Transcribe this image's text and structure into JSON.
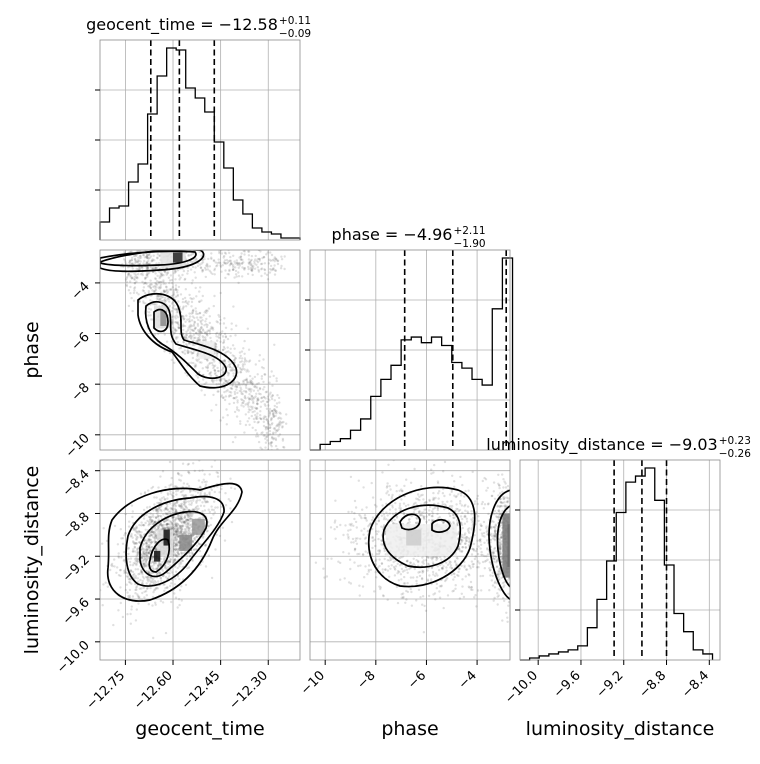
{
  "chart_data": {
    "type": "corner",
    "parameters": [
      "geocent_time",
      "phase",
      "luminosity_distance"
    ],
    "axis_labels": {
      "geocent_time": "geocent_time",
      "phase": "phase",
      "luminosity_distance": "luminosity_distance"
    },
    "grid": true,
    "titles": [
      {
        "param": "geocent_time",
        "text": "geocent_time = −12.58",
        "plus": "+0.11",
        "minus": "−0.09"
      },
      {
        "param": "phase",
        "text": "phase = −4.96",
        "plus": "+2.11",
        "minus": "−1.90"
      },
      {
        "param": "luminosity_distance",
        "text": "luminosity_distance = −9.03",
        "plus": "+0.23",
        "minus": "−0.26"
      }
    ],
    "ranges": {
      "geocent_time": [
        -12.83,
        -12.2
      ],
      "phase": [
        -10.6,
        -2.7
      ],
      "luminosity_distance": [
        -10.17,
        -8.3
      ]
    },
    "ticks": {
      "geocent_time": {
        "values": [
          -12.75,
          -12.6,
          -12.45,
          -12.3
        ],
        "labels": [
          "−12.75",
          "−12.60",
          "−12.45",
          "−12.30"
        ]
      },
      "phase": {
        "values": [
          -10,
          -8,
          -6,
          -4
        ],
        "labels": [
          "−10",
          "−8",
          "−6",
          "−4"
        ]
      },
      "luminosity_distance": {
        "values": [
          -10.0,
          -9.6,
          -9.2,
          -8.8,
          -8.4
        ],
        "labels": [
          "−10.0",
          "−9.6",
          "−9.2",
          "−8.8",
          "−8.4"
        ]
      }
    },
    "quantiles": {
      "geocent_time": [
        -12.67,
        -12.58,
        -12.47
      ],
      "phase": [
        -6.86,
        -4.96,
        -2.85
      ],
      "luminosity_distance": [
        -9.29,
        -9.03,
        -8.8
      ]
    },
    "histograms": {
      "geocent_time": {
        "edges": [
          -12.83,
          -12.8,
          -12.77,
          -12.74,
          -12.71,
          -12.68,
          -12.65,
          -12.62,
          -12.59,
          -12.56,
          -12.53,
          -12.5,
          -12.47,
          -12.44,
          -12.41,
          -12.38,
          -12.35,
          -12.32,
          -12.29,
          -12.26,
          -12.23,
          -12.2
        ],
        "counts": [
          0.09,
          0.16,
          0.17,
          0.29,
          0.38,
          0.63,
          0.82,
          0.96,
          0.95,
          0.76,
          0.71,
          0.64,
          0.49,
          0.36,
          0.2,
          0.13,
          0.06,
          0.04,
          0.03,
          0.01,
          0.01
        ]
      },
      "phase": {
        "edges": [
          -10.6,
          -10.2,
          -9.8,
          -9.4,
          -9.0,
          -8.6,
          -8.2,
          -7.8,
          -7.4,
          -7.0,
          -6.6,
          -6.2,
          -5.8,
          -5.4,
          -5.0,
          -4.6,
          -4.2,
          -3.8,
          -3.4,
          -3.0,
          -2.6
        ],
        "counts": [
          0.0,
          0.02,
          0.03,
          0.04,
          0.07,
          0.11,
          0.19,
          0.25,
          0.3,
          0.39,
          0.4,
          0.38,
          0.4,
          0.37,
          0.31,
          0.29,
          0.25,
          0.23,
          0.5,
          0.68
        ]
      },
      "luminosity_distance": {
        "edges": [
          -10.17,
          -10.08,
          -9.99,
          -9.9,
          -9.81,
          -9.72,
          -9.63,
          -9.54,
          -9.45,
          -9.36,
          -9.27,
          -9.18,
          -9.09,
          -9.0,
          -8.91,
          -8.82,
          -8.73,
          -8.64,
          -8.55,
          -8.46,
          -8.37
        ],
        "counts": [
          0.0,
          0.01,
          0.02,
          0.03,
          0.04,
          0.05,
          0.07,
          0.16,
          0.3,
          0.49,
          0.73,
          0.88,
          0.91,
          0.95,
          0.79,
          0.47,
          0.23,
          0.14,
          0.05,
          0.03
        ]
      }
    },
    "pairs": [
      {
        "x": "geocent_time",
        "y": "phase"
      },
      {
        "x": "geocent_time",
        "y": "luminosity_distance"
      },
      {
        "x": "phase",
        "y": "luminosity_distance"
      }
    ]
  }
}
